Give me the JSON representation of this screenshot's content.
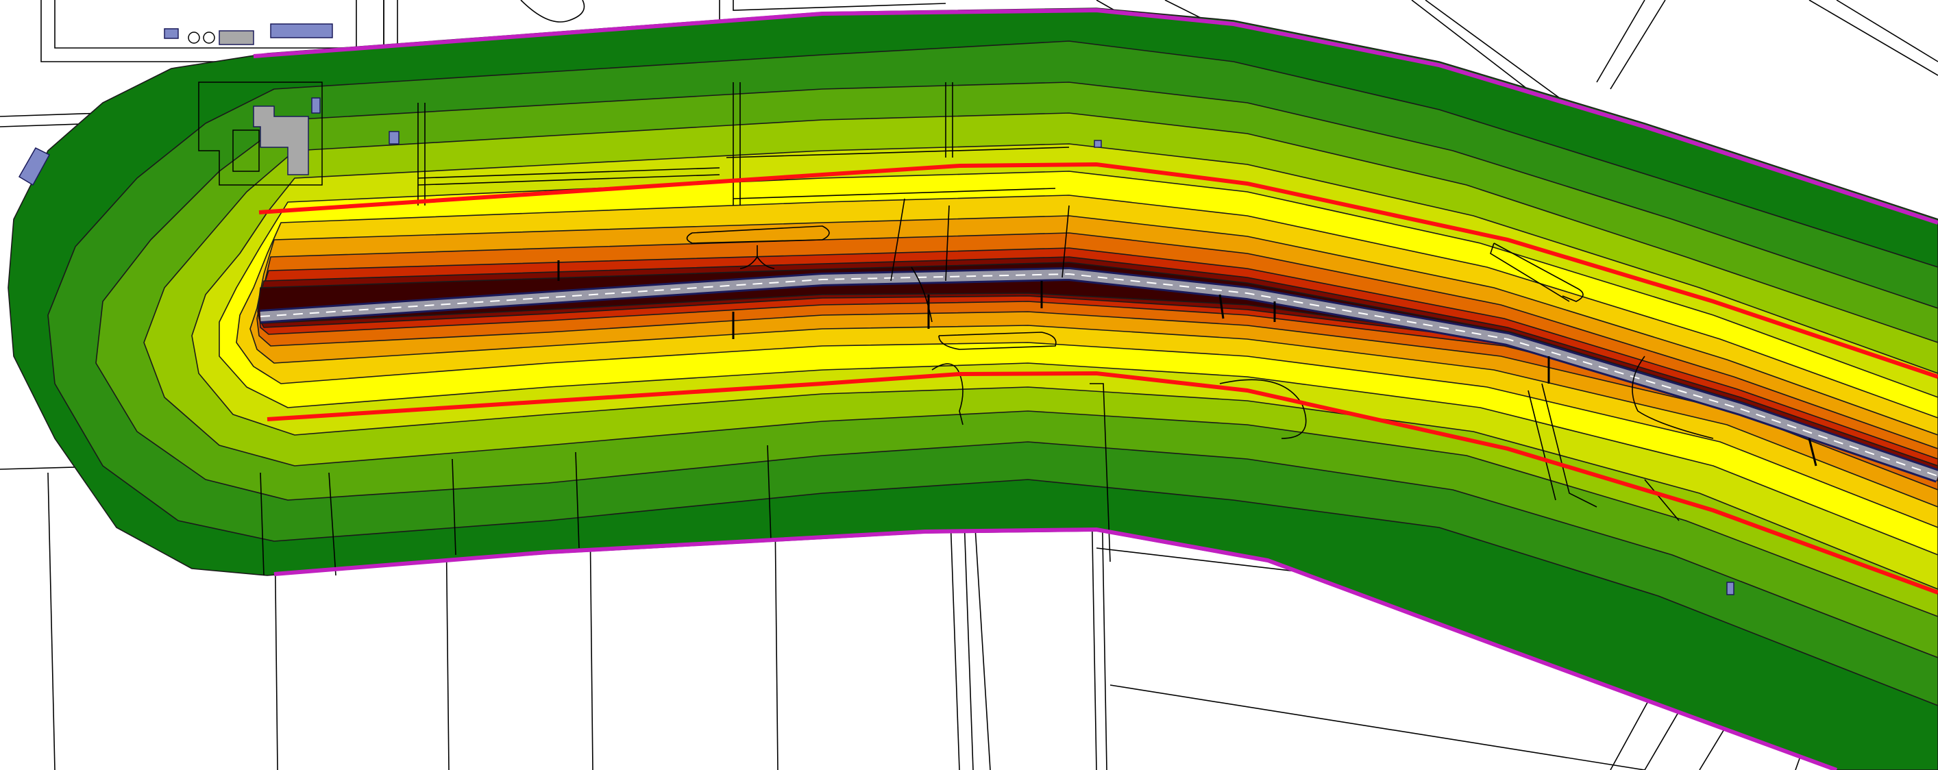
{
  "map": {
    "type": "road-noise-contour-map",
    "colors": {
      "background": "#ffffff",
      "zone_outer": "#0e7a0e",
      "zone_1": "#2f8f12",
      "zone_2": "#5aa80a",
      "zone_3": "#97c800",
      "zone_4": "#cfe000",
      "zone_5": "#ffff00",
      "zone_6": "#f5cf00",
      "zone_7": "#eea000",
      "zone_8": "#e36a00",
      "zone_9": "#cc2a00",
      "zone_10": "#7a0a00",
      "zone_core": "#3a0000",
      "road_surface": "#9a9aa8",
      "road_edge": "#1a1a5a",
      "road_marking": "#ffffff",
      "limit_line_red": "#ff1010",
      "boundary_line_magenta": "#c020c0",
      "building_fill": "#a8a8a8",
      "building_blue": "#7f89c8",
      "base_lines": "#000000"
    },
    "layers": [
      "contour-zones",
      "road",
      "red-limit-lines",
      "magenta-study-boundary",
      "base-map-lines",
      "buildings"
    ]
  }
}
